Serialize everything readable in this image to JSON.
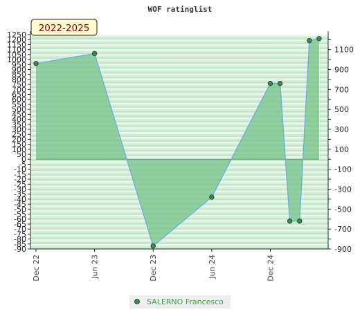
{
  "chart_data": {
    "type": "area",
    "title": "WOF ratinglist",
    "badge": "2022-2025",
    "x_ticks": [
      "Dec 22",
      "Jun 23",
      "Dec 23",
      "Jun 24",
      "Dec 24"
    ],
    "x_tick_months": [
      0,
      6,
      12,
      18,
      24
    ],
    "x_range_months": [
      0,
      29.5
    ],
    "series": [
      {
        "name": "SALERNO Francesco",
        "x_months": [
          0,
          6,
          12,
          18,
          24,
          25,
          26,
          27,
          28,
          29
        ],
        "values": [
          960,
          1060,
          -870,
          -380,
          760,
          760,
          -620,
          -620,
          1190,
          1210
        ]
      }
    ],
    "ylim": [
      -900,
      1250
    ],
    "y_left_ticks": [
      1250,
      1200,
      1150,
      1100,
      1050,
      1000,
      950,
      900,
      850,
      800,
      750,
      700,
      650,
      600,
      550,
      500,
      450,
      400,
      350,
      300,
      250,
      200,
      150,
      100,
      50,
      0,
      -5,
      -10,
      -15,
      -20,
      -25,
      -30,
      -35,
      -40,
      -45,
      -50,
      -55,
      -60,
      -65,
      -70,
      -75,
      -80,
      -85,
      -90
    ],
    "y_right_ticks": [
      1100,
      900,
      700,
      500,
      300,
      100,
      -100,
      -300,
      -500,
      -700,
      -900
    ],
    "colors": {
      "line": "#6aaedb",
      "fill": "#7cc48d",
      "marker": "#3c8c50",
      "band_light": "#f4fbf5",
      "band_dark": "#b7e0c0",
      "badge_bg": "#fffacd",
      "badge_text": "#8b0000",
      "legend_text": "#3aa04a"
    }
  }
}
